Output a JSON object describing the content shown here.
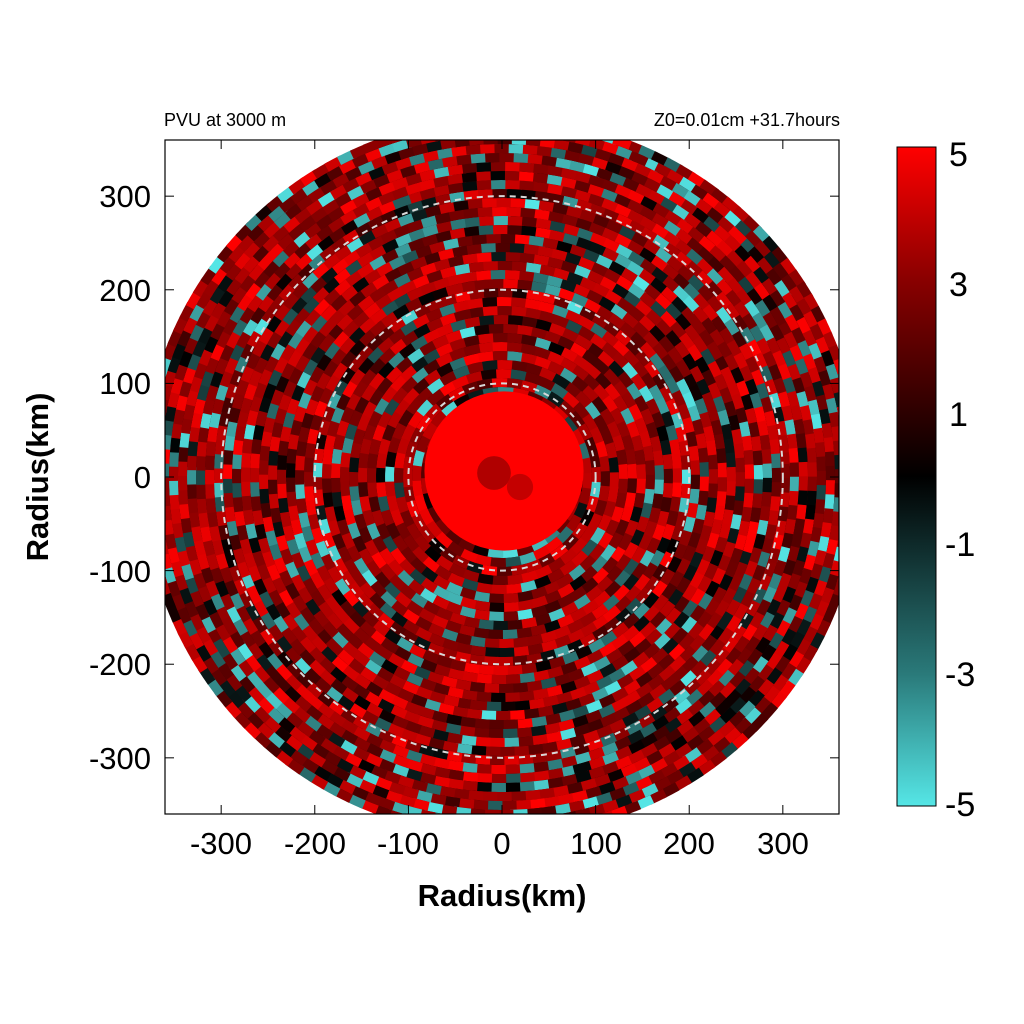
{
  "chart_data": {
    "type": "heatmap",
    "title_left": "PVU at  3000 m",
    "title_right": "Z0=0.01cm  +31.7hours",
    "xlabel": "Radius(km)",
    "ylabel": "Radius(km)",
    "xlim": [
      -360,
      360
    ],
    "ylim": [
      -360,
      360
    ],
    "x_ticks": [
      "-300",
      "-200",
      "-100",
      "0",
      "100",
      "200",
      "300"
    ],
    "y_ticks": [
      "300",
      "200",
      "100",
      "0",
      "-100",
      "-200",
      "-300"
    ],
    "x_tick_values": [
      -300,
      -200,
      -100,
      0,
      100,
      200,
      300
    ],
    "y_tick_values": [
      300,
      200,
      100,
      0,
      -100,
      -200,
      -300
    ],
    "domain_radius_km": 380,
    "range_rings_km": [
      100,
      200,
      300
    ],
    "core": {
      "radius_km": 100,
      "value": 5
    },
    "colorbar": {
      "min": -5,
      "max": 5,
      "tick_labels": [
        "5",
        "3",
        "1",
        "-1",
        "-3",
        "-5"
      ],
      "tick_values": [
        5,
        3,
        1,
        -1,
        -3,
        -5
      ],
      "colors": {
        "positive_max": "#ff0000",
        "zero": "#000000",
        "negative_max": "#55e6e6"
      }
    },
    "grid": false,
    "legend": "colorbar-right"
  }
}
